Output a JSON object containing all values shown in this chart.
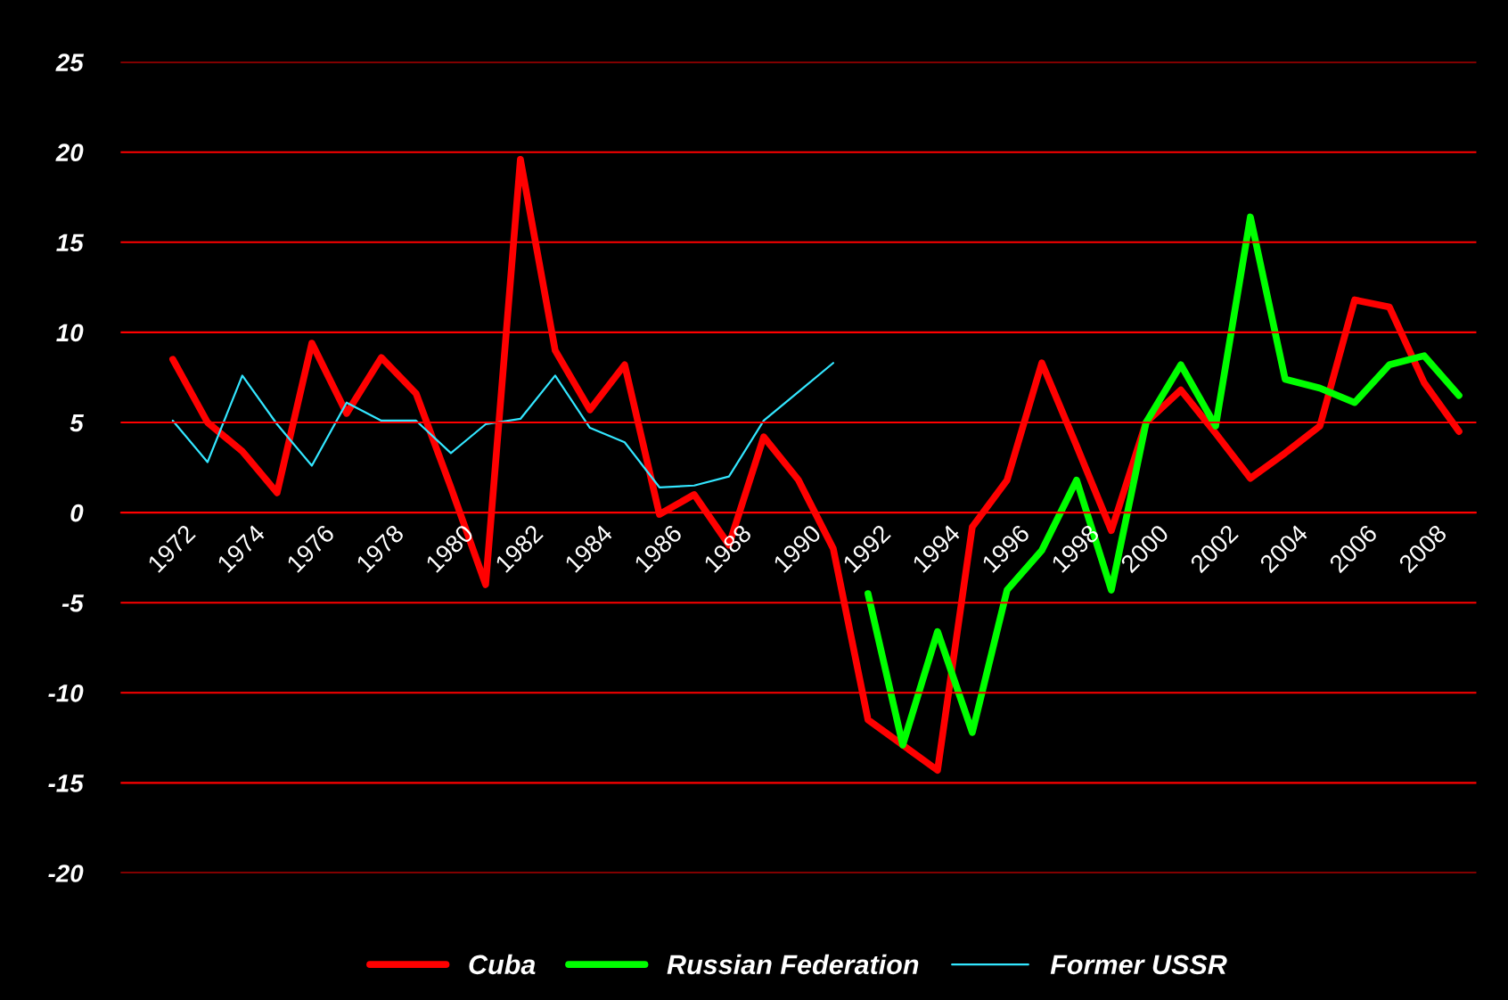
{
  "chart_data": {
    "type": "line",
    "x": [
      1972,
      1973,
      1974,
      1975,
      1976,
      1977,
      1978,
      1979,
      1980,
      1981,
      1982,
      1983,
      1984,
      1985,
      1986,
      1987,
      1988,
      1989,
      1990,
      1991,
      1992,
      1993,
      1994,
      1995,
      1996,
      1997,
      1998,
      1999,
      2000,
      2001,
      2002,
      2003,
      2004,
      2005,
      2006,
      2007,
      2008,
      2009
    ],
    "series": [
      {
        "name": "Cuba",
        "color": "#ff0000",
        "values": [
          8.5,
          5.0,
          3.4,
          1.1,
          9.4,
          5.5,
          8.6,
          6.6,
          1.4,
          -4.0,
          19.6,
          9.0,
          5.7,
          8.2,
          -0.1,
          1.0,
          -1.8,
          4.2,
          1.8,
          -2.0,
          -11.5,
          -12.9,
          -14.3,
          -0.8,
          1.8,
          8.3,
          3.7,
          -1.0,
          5.0,
          6.8,
          4.4,
          1.9,
          3.3,
          4.8,
          11.8,
          11.4,
          7.2,
          4.5
        ]
      },
      {
        "name": "Russian Federation",
        "color": "#00ff00",
        "values": [
          null,
          null,
          null,
          null,
          null,
          null,
          null,
          null,
          null,
          null,
          null,
          null,
          null,
          null,
          null,
          null,
          null,
          null,
          null,
          null,
          -4.5,
          -12.9,
          -6.6,
          -12.2,
          -4.3,
          -2.1,
          1.8,
          -4.3,
          5.0,
          8.2,
          4.8,
          16.4,
          7.4,
          6.9,
          6.1,
          8.2,
          8.7,
          6.5
        ]
      },
      {
        "name": "Former USSR",
        "color": "#33e6ff",
        "values": [
          5.1,
          2.8,
          7.6,
          4.9,
          2.6,
          6.1,
          5.1,
          5.1,
          3.3,
          4.9,
          5.2,
          7.6,
          4.7,
          3.9,
          1.4,
          1.5,
          2.0,
          5.1,
          6.7,
          8.3,
          null,
          null,
          null,
          null,
          null,
          null,
          null,
          null,
          null,
          null,
          null,
          null,
          null,
          null,
          null,
          null,
          null,
          null
        ]
      }
    ],
    "xlim": [
      1970.5,
      2009.5
    ],
    "xticks": [
      1972,
      1974,
      1976,
      1978,
      1980,
      1982,
      1984,
      1986,
      1988,
      1990,
      1992,
      1994,
      1996,
      1998,
      2000,
      2002,
      2004,
      2006,
      2008
    ],
    "ylim": [
      -20,
      25
    ],
    "yticks": [
      -20,
      -15,
      -10,
      -5,
      0,
      5,
      10,
      15,
      20,
      25
    ],
    "grid": "y",
    "legend": "bottom",
    "marker": "none",
    "line_style": "solid"
  }
}
